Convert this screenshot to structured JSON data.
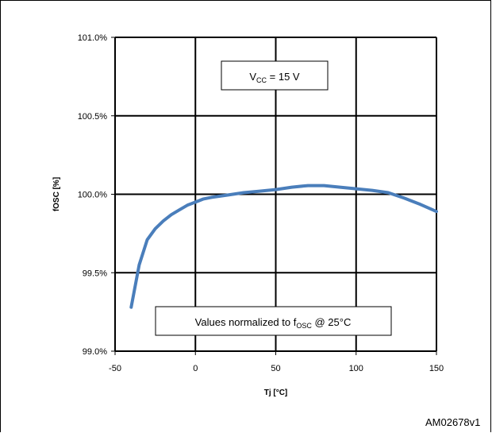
{
  "chart_data": {
    "type": "line",
    "xlabel": "Tj [°C]",
    "ylabel": "fOSC [%]",
    "xlim": [
      -50,
      150
    ],
    "ylim": [
      99.0,
      101.0
    ],
    "x_ticks": [
      -50,
      0,
      50,
      100,
      150
    ],
    "y_ticks": [
      99.0,
      99.5,
      100.0,
      100.5,
      101.0
    ],
    "x_tick_labels": [
      "-50",
      "0",
      "50",
      "100",
      "150"
    ],
    "y_tick_labels": [
      "99.0%",
      "99.5%",
      "100.0%",
      "100.5%",
      "101.0%"
    ],
    "grid": true,
    "line_color": "#4a7ebb",
    "series": [
      {
        "x": [
          -40,
          -35,
          -30,
          -25,
          -20,
          -15,
          -10,
          -5,
          0,
          5,
          10,
          20,
          30,
          40,
          50,
          60,
          70,
          80,
          90,
          100,
          110,
          120,
          130,
          140,
          150
        ],
        "y": [
          99.28,
          99.55,
          99.71,
          99.78,
          99.83,
          99.87,
          99.9,
          99.93,
          99.95,
          99.97,
          99.98,
          99.995,
          100.01,
          100.02,
          100.03,
          100.045,
          100.055,
          100.055,
          100.045,
          100.035,
          100.025,
          100.01,
          99.975,
          99.935,
          99.89
        ]
      }
    ],
    "annotations": [
      {
        "parts": [
          {
            "text": "V"
          },
          {
            "text": "CC",
            "sub": true
          },
          {
            "text": " = 15 V"
          }
        ]
      },
      {
        "parts": [
          {
            "text": "Values normalized  to f"
          },
          {
            "text": "OSC",
            "sub": true
          },
          {
            "text": " @ 25°C"
          }
        ]
      }
    ]
  },
  "figure_id": "AM02678v1"
}
